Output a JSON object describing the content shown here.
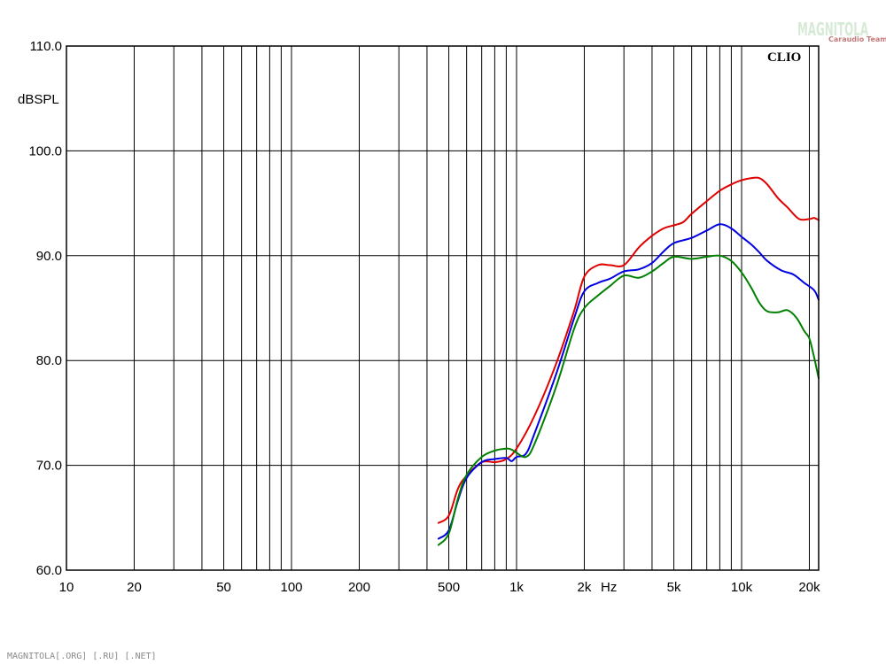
{
  "chart_data": {
    "type": "line",
    "title": "",
    "ylabel": "dBSPL",
    "xlabel": "Hz",
    "brand_label": "CLIO",
    "watermark": {
      "main": "MAGNITOLA",
      "sub": "Caraudio Team",
      "footer": "MAGNITOLA[.ORG] [.RU] [.NET]"
    },
    "x_scale": "log",
    "xlim": [
      10,
      22000
    ],
    "ylim": [
      60,
      110
    ],
    "grid": true,
    "x_ticks": [
      {
        "v": 10,
        "label": "10"
      },
      {
        "v": 20,
        "label": "20"
      },
      {
        "v": 50,
        "label": "50"
      },
      {
        "v": 100,
        "label": "100"
      },
      {
        "v": 200,
        "label": "200"
      },
      {
        "v": 500,
        "label": "500"
      },
      {
        "v": 1000,
        "label": "1k"
      },
      {
        "v": 2000,
        "label": "2k"
      },
      {
        "v": 5000,
        "label": "5k"
      },
      {
        "v": 10000,
        "label": "10k"
      },
      {
        "v": 20000,
        "label": "20k"
      }
    ],
    "y_ticks": [
      {
        "v": 60,
        "label": "60.0"
      },
      {
        "v": 70,
        "label": "70.0"
      },
      {
        "v": 80,
        "label": "80.0"
      },
      {
        "v": 90,
        "label": "90.0"
      },
      {
        "v": 100,
        "label": "100.0"
      },
      {
        "v": 110,
        "label": "110.0"
      }
    ],
    "series": [
      {
        "color": "#e00000",
        "points": [
          [
            450,
            64.5
          ],
          [
            500,
            65.2
          ],
          [
            550,
            67.8
          ],
          [
            600,
            69.0
          ],
          [
            700,
            70.3
          ],
          [
            800,
            70.3
          ],
          [
            900,
            70.6
          ],
          [
            1000,
            71.6
          ],
          [
            1200,
            74.7
          ],
          [
            1500,
            79.7
          ],
          [
            1800,
            84.7
          ],
          [
            2000,
            88.0
          ],
          [
            2300,
            89.1
          ],
          [
            2600,
            89.1
          ],
          [
            3000,
            89.1
          ],
          [
            3500,
            90.8
          ],
          [
            4000,
            91.9
          ],
          [
            4500,
            92.6
          ],
          [
            5000,
            92.9
          ],
          [
            5500,
            93.2
          ],
          [
            6000,
            94.0
          ],
          [
            7000,
            95.2
          ],
          [
            8000,
            96.2
          ],
          [
            9000,
            96.8
          ],
          [
            10000,
            97.2
          ],
          [
            11000,
            97.4
          ],
          [
            12000,
            97.4
          ],
          [
            13000,
            96.8
          ],
          [
            14500,
            95.5
          ],
          [
            16000,
            94.6
          ],
          [
            18000,
            93.5
          ],
          [
            20000,
            93.5
          ],
          [
            21000,
            93.6
          ],
          [
            22000,
            93.4
          ]
        ]
      },
      {
        "color": "#0000e0",
        "points": [
          [
            450,
            63.0
          ],
          [
            500,
            63.8
          ],
          [
            550,
            66.7
          ],
          [
            600,
            68.8
          ],
          [
            700,
            70.3
          ],
          [
            800,
            70.6
          ],
          [
            900,
            70.7
          ],
          [
            950,
            70.4
          ],
          [
            1000,
            70.8
          ],
          [
            1100,
            71.1
          ],
          [
            1200,
            73.0
          ],
          [
            1500,
            78.7
          ],
          [
            1800,
            84.0
          ],
          [
            2000,
            86.6
          ],
          [
            2300,
            87.4
          ],
          [
            2600,
            87.8
          ],
          [
            3000,
            88.5
          ],
          [
            3500,
            88.7
          ],
          [
            4000,
            89.3
          ],
          [
            4500,
            90.4
          ],
          [
            5000,
            91.2
          ],
          [
            6000,
            91.7
          ],
          [
            7000,
            92.4
          ],
          [
            8000,
            93.0
          ],
          [
            9000,
            92.6
          ],
          [
            10000,
            91.8
          ],
          [
            11000,
            91.1
          ],
          [
            12000,
            90.3
          ],
          [
            13000,
            89.5
          ],
          [
            15000,
            88.6
          ],
          [
            17000,
            88.2
          ],
          [
            19000,
            87.4
          ],
          [
            21000,
            86.7
          ],
          [
            22000,
            85.8
          ]
        ]
      },
      {
        "color": "#008000",
        "points": [
          [
            450,
            62.4
          ],
          [
            500,
            63.5
          ],
          [
            550,
            66.9
          ],
          [
            600,
            69.1
          ],
          [
            700,
            70.8
          ],
          [
            800,
            71.4
          ],
          [
            900,
            71.6
          ],
          [
            950,
            71.5
          ],
          [
            1000,
            71.2
          ],
          [
            1100,
            70.8
          ],
          [
            1200,
            72.0
          ],
          [
            1500,
            77.5
          ],
          [
            1800,
            83.0
          ],
          [
            2000,
            85.0
          ],
          [
            2300,
            86.2
          ],
          [
            2600,
            87.1
          ],
          [
            3000,
            88.1
          ],
          [
            3500,
            87.9
          ],
          [
            4000,
            88.5
          ],
          [
            4500,
            89.3
          ],
          [
            5000,
            89.9
          ],
          [
            6000,
            89.7
          ],
          [
            7000,
            89.9
          ],
          [
            8000,
            90.0
          ],
          [
            9000,
            89.5
          ],
          [
            10000,
            88.4
          ],
          [
            11000,
            87.0
          ],
          [
            12000,
            85.5
          ],
          [
            13000,
            84.7
          ],
          [
            14500,
            84.6
          ],
          [
            16000,
            84.8
          ],
          [
            17500,
            84.1
          ],
          [
            19000,
            82.8
          ],
          [
            20000,
            82.1
          ],
          [
            21000,
            80.3
          ],
          [
            22000,
            78.3
          ]
        ]
      }
    ]
  }
}
